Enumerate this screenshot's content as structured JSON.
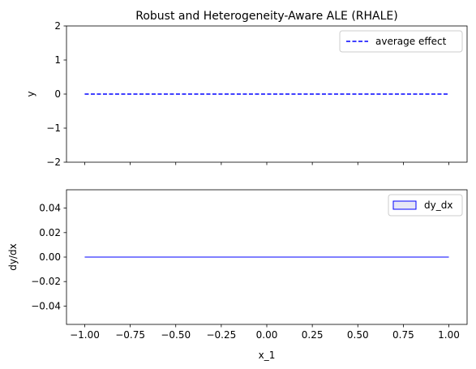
{
  "chart_data": [
    {
      "type": "line",
      "title": "Robust and Heterogeneity-Aware ALE (RHALE)",
      "xlabel": "",
      "ylabel": "y",
      "xlim": [
        -1.1,
        1.1
      ],
      "ylim": [
        -2,
        2
      ],
      "xticks": [
        -1.0,
        -0.75,
        -0.5,
        -0.25,
        0.0,
        0.25,
        0.5,
        0.75,
        1.0
      ],
      "yticks": [
        -2,
        -1,
        0,
        1,
        2
      ],
      "ytick_labels": [
        "−2",
        "−1",
        "0",
        "1",
        "2"
      ],
      "grid": false,
      "legend": "upper-right",
      "colors": {
        "line": "#0000ff"
      },
      "series": [
        {
          "name": "average effect",
          "style": "dashed",
          "x": [
            -1.0,
            1.0
          ],
          "y": [
            0,
            0
          ]
        }
      ]
    },
    {
      "type": "line",
      "title": "",
      "xlabel": "x_1",
      "ylabel": "dy/dx",
      "xlim": [
        -1.1,
        1.1
      ],
      "ylim": [
        -0.055,
        0.055
      ],
      "xticks": [
        -1.0,
        -0.75,
        -0.5,
        -0.25,
        0.0,
        0.25,
        0.5,
        0.75,
        1.0
      ],
      "xtick_labels": [
        "−1.00",
        "−0.75",
        "−0.50",
        "−0.25",
        "0.00",
        "0.25",
        "0.50",
        "0.75",
        "1.00"
      ],
      "yticks": [
        -0.04,
        -0.02,
        0.0,
        0.02,
        0.04
      ],
      "ytick_labels": [
        "−0.04",
        "−0.02",
        "0.00",
        "0.02",
        "0.04"
      ],
      "grid": false,
      "legend": "upper-right",
      "colors": {
        "line": "#0000ff",
        "fill": "#e6e6f5"
      },
      "series": [
        {
          "name": "dy_dx",
          "style": "solid",
          "x": [
            -1.0,
            1.0
          ],
          "y": [
            0,
            0
          ]
        }
      ]
    }
  ]
}
